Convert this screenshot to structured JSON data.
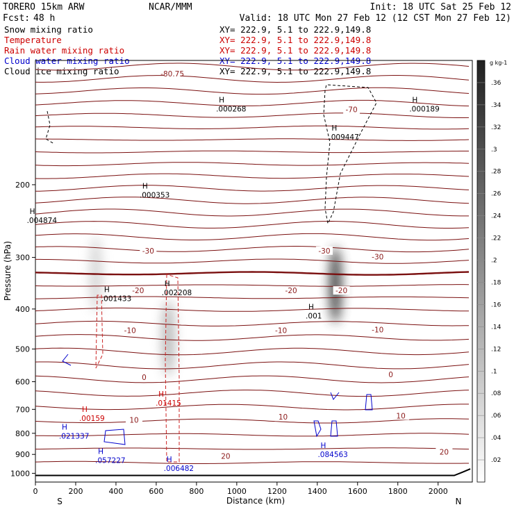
{
  "header": {
    "model": "TORERO   15km ARW",
    "center": "NCAR/MMM",
    "init": "Init: 18 UTC Sat 25 Feb 12",
    "fcst_label": "Fcst:",
    "fcst_value": "48 h",
    "valid": "Valid: 18 UTC Mon 27 Feb 12 (12 CST Mon 27 Feb 12)"
  },
  "legend": [
    {
      "name": "Snow mixing ratio",
      "xy": "XY= 222.9,  5.1 to 222.9,149.8",
      "color": "#000000"
    },
    {
      "name": "Temperature",
      "xy": "XY= 222.9,  5.1 to 222.9,149.8",
      "color": "#cc0000"
    },
    {
      "name": "Rain water mixing ratio",
      "xy": "XY= 222.9,  5.1 to 222.9,149.8",
      "color": "#cc0000"
    },
    {
      "name": "Cloud water mixing ratio",
      "xy": "XY= 222.9,  5.1 to 222.9,149.8",
      "color": "#0000cc"
    },
    {
      "name": "Cloud ice mixing ratio",
      "xy": "XY= 222.9,  5.1 to 222.9,149.8",
      "color": "#000000"
    }
  ],
  "chart_data": {
    "type": "cross-section",
    "xlabel": "Distance (km)",
    "ylabel": "Pressure (hPa)",
    "xlim": [
      0,
      2170
    ],
    "ylim": [
      1050,
      100
    ],
    "y_scale": "log",
    "x_ticks": [
      0,
      200,
      400,
      600,
      800,
      1000,
      1200,
      1400,
      1600,
      1800,
      2000
    ],
    "y_ticks": [
      200,
      300,
      400,
      500,
      600,
      700,
      800,
      900,
      1000
    ],
    "endpoints": {
      "left": "S",
      "right": "N"
    },
    "colorbar": {
      "units": "g kg-1",
      "ticks": [
        ".02",
        ".04",
        ".06",
        ".08",
        ".1",
        ".12",
        ".14",
        ".16",
        ".18",
        ".2",
        ".22",
        ".24",
        ".26",
        ".28",
        ".3",
        ".32",
        ".34",
        ".36"
      ],
      "range": [
        0,
        0.38
      ]
    },
    "temperature_labels": [
      {
        "text": "-80.75",
        "x": 680,
        "p": 108
      },
      {
        "text": "-70",
        "x": 1570,
        "p": 132
      },
      {
        "text": "-30",
        "x": 560,
        "p": 290
      },
      {
        "text": "-30",
        "x": 1435,
        "p": 290
      },
      {
        "text": "-30",
        "x": 1700,
        "p": 300
      },
      {
        "text": "-20",
        "x": 510,
        "p": 362
      },
      {
        "text": "-20",
        "x": 1270,
        "p": 362
      },
      {
        "text": "-20",
        "x": 1520,
        "p": 362
      },
      {
        "text": "-10",
        "x": 470,
        "p": 452
      },
      {
        "text": "-10",
        "x": 1220,
        "p": 452
      },
      {
        "text": "-10",
        "x": 1700,
        "p": 450
      },
      {
        "text": "0",
        "x": 540,
        "p": 587
      },
      {
        "text": "0",
        "x": 1765,
        "p": 578
      },
      {
        "text": "10",
        "x": 490,
        "p": 745
      },
      {
        "text": "10",
        "x": 1230,
        "p": 733
      },
      {
        "text": "10",
        "x": 1815,
        "p": 728
      },
      {
        "text": "20",
        "x": 945,
        "p": 912
      },
      {
        "text": "20",
        "x": 2030,
        "p": 890
      }
    ],
    "maxima_labels": [
      {
        "text": ".000268",
        "x": 980,
        "p": 130,
        "color": "#000000"
      },
      {
        "text": ".000189",
        "x": 1940,
        "p": 130,
        "color": "#000000"
      },
      {
        "text": ".009447",
        "x": 1540,
        "p": 152,
        "color": "#000000"
      },
      {
        "text": ".000353",
        "x": 600,
        "p": 210,
        "color": "#000000"
      },
      {
        "text": ".004874",
        "x": 40,
        "p": 242,
        "color": "#000000"
      },
      {
        "text": ".002208",
        "x": 710,
        "p": 362,
        "color": "#000000"
      },
      {
        "text": ".001433",
        "x": 410,
        "p": 374,
        "color": "#000000"
      },
      {
        "text": ".001",
        "x": 1425,
        "p": 412,
        "color": "#000000"
      },
      {
        "text": ".01415",
        "x": 680,
        "p": 670,
        "color": "#cc0000"
      },
      {
        "text": ".00159",
        "x": 300,
        "p": 730,
        "color": "#cc0000"
      },
      {
        "text": ".021337",
        "x": 200,
        "p": 805,
        "color": "#0000cc"
      },
      {
        "text": ".084563",
        "x": 1485,
        "p": 892,
        "color": "#0000cc"
      },
      {
        "text": ".057227",
        "x": 380,
        "p": 922,
        "color": "#0000cc"
      },
      {
        "text": ".006482",
        "x": 720,
        "p": 965,
        "color": "#0000cc"
      }
    ],
    "snow_maxima": [
      {
        "x": 1490,
        "p": 350,
        "value": 0.36
      },
      {
        "x": 660,
        "p": 470,
        "value": 0.14
      },
      {
        "x": 300,
        "p": 330,
        "value": 0.08
      }
    ]
  }
}
